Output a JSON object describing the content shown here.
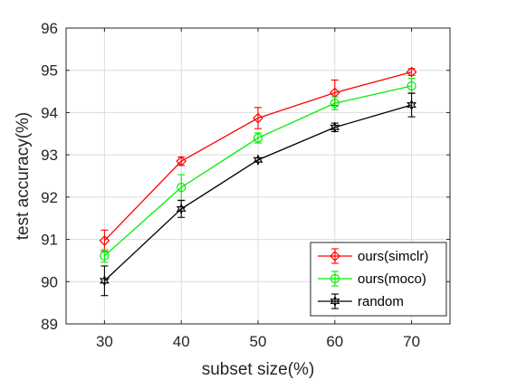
{
  "chart_data": {
    "type": "line",
    "xlabel": "subset size(%)",
    "ylabel": "test accuracy(%)",
    "xlim": [
      25,
      75
    ],
    "ylim": [
      89,
      96
    ],
    "x": [
      30,
      40,
      50,
      60,
      70
    ],
    "x_ticks": [
      30,
      40,
      50,
      60,
      70
    ],
    "y_ticks": [
      89,
      90,
      91,
      92,
      93,
      94,
      95,
      96
    ],
    "grid": true,
    "legend_position": "bottom-right",
    "series": [
      {
        "name": "ours(simclr)",
        "color": "#ff0000",
        "marker": "diamond",
        "values": [
          90.97,
          92.85,
          93.87,
          94.47,
          94.96
        ],
        "errors": [
          0.25,
          0.1,
          0.25,
          0.3,
          0.08
        ]
      },
      {
        "name": "ours(moco)",
        "color": "#00ee00",
        "marker": "circle",
        "values": [
          90.61,
          92.23,
          93.4,
          94.22,
          94.63
        ],
        "errors": [
          0.15,
          0.3,
          0.12,
          0.15,
          0.18
        ]
      },
      {
        "name": "random",
        "color": "#000000",
        "marker": "hexagram",
        "values": [
          90.02,
          91.72,
          92.88,
          93.65,
          94.18
        ],
        "errors": [
          0.35,
          0.2,
          0.05,
          0.1,
          0.28
        ]
      }
    ]
  }
}
